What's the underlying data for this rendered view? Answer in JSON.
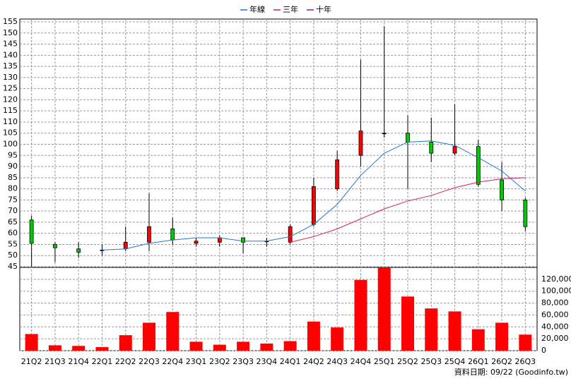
{
  "chart_data": [
    {
      "type": "candlestick",
      "categories": [
        "21Q2",
        "21Q3",
        "21Q4",
        "22Q1",
        "22Q2",
        "22Q3",
        "22Q4",
        "23Q1",
        "23Q2",
        "23Q3",
        "23Q4",
        "24Q1",
        "24Q2",
        "24Q3",
        "24Q4",
        "25Q1",
        "25Q2",
        "25Q3",
        "25Q4",
        "26Q1",
        "26Q2",
        "26Q3"
      ],
      "open": [
        66,
        55,
        53,
        52.5,
        53,
        56,
        62,
        55.5,
        56,
        58,
        56.5,
        56,
        64,
        80,
        95,
        105,
        105,
        101,
        96,
        99,
        84,
        75
      ],
      "high": [
        68,
        56,
        56,
        55,
        63,
        78,
        67,
        58,
        59,
        58,
        58,
        64,
        85,
        97,
        138,
        153,
        113,
        112,
        118,
        102,
        92,
        76
      ],
      "low": [
        45,
        47,
        49,
        50,
        52,
        52,
        55,
        54,
        54,
        51,
        54,
        55,
        63,
        79,
        90,
        103,
        80,
        92,
        95,
        81,
        70,
        61
      ],
      "close": [
        55.5,
        53.5,
        51.5,
        52.5,
        56,
        63,
        57,
        56.5,
        58,
        56,
        56.5,
        63,
        81,
        93,
        106,
        105,
        101,
        96,
        99,
        82,
        75,
        63
      ],
      "up_color": "#ff0000",
      "down_color": "#00cc00",
      "flat_color": "#000000",
      "series": [
        {
          "name": "年線",
          "color": "#1f77d0",
          "values": [
            null,
            null,
            null,
            52.5,
            53,
            55.5,
            57,
            58,
            58,
            56.5,
            56.5,
            58.5,
            64,
            73,
            86,
            96,
            101,
            101.5,
            99.5,
            94,
            88,
            79
          ]
        },
        {
          "name": "三年",
          "color": "#d81b60",
          "values": [
            null,
            null,
            null,
            null,
            null,
            null,
            null,
            null,
            null,
            null,
            null,
            56,
            58.5,
            62,
            66.5,
            71,
            74.5,
            77,
            80.5,
            83,
            84.5,
            85
          ]
        },
        {
          "name": "十年",
          "color": "#8e1f8e",
          "values": [
            null,
            null,
            null,
            null,
            null,
            null,
            null,
            null,
            null,
            null,
            null,
            null,
            null,
            null,
            null,
            null,
            null,
            null,
            null,
            null,
            null,
            null
          ]
        }
      ],
      "ylim": [
        45,
        155
      ],
      "yticks": [
        45,
        50,
        55,
        60,
        65,
        70,
        75,
        80,
        85,
        90,
        95,
        100,
        105,
        110,
        115,
        120,
        125,
        130,
        135,
        140,
        145,
        150,
        155
      ],
      "grid": true
    },
    {
      "type": "bar",
      "values": [
        28000,
        9000,
        8000,
        6000,
        26000,
        47000,
        65000,
        15000,
        10000,
        15000,
        12000,
        16000,
        49000,
        39000,
        119000,
        140000,
        91000,
        71000,
        66000,
        36000,
        47000,
        27000
      ],
      "color": "#ff0000",
      "ylim": [
        0,
        140000
      ],
      "yticks": [
        0,
        {
          "value": 20000,
          "label": "20,000"
        },
        {
          "value": 40000,
          "label": "40,000"
        },
        {
          "value": 60000,
          "label": "60,000"
        },
        {
          "value": 80000,
          "label": "80,000"
        },
        {
          "value": 100000,
          "label": "100,000"
        },
        {
          "value": 120000,
          "label": "120,000"
        }
      ],
      "grid": true,
      "footer": "資料日期: 09/22  (Goodinfo.tw)"
    }
  ]
}
